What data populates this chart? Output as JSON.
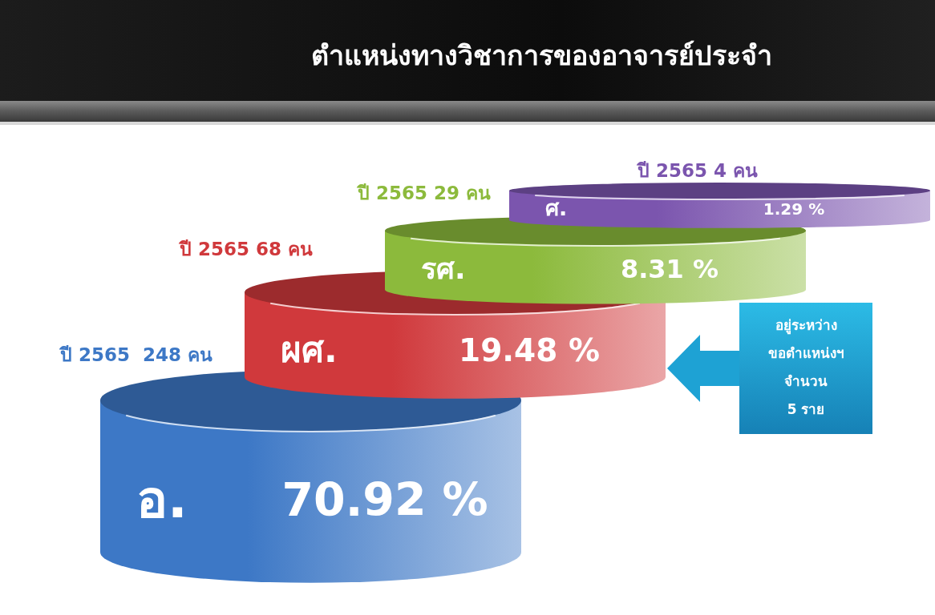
{
  "chart_data": {
    "type": "other",
    "title": "ตำแหน่งทางวิชาการของอาจารย์ประจำ",
    "categories": [
      "อ.",
      "ผศ.",
      "รศ.",
      "ศ."
    ],
    "values": [
      70.92,
      19.48,
      8.31,
      1.29
    ],
    "value_labels": [
      "70.92 %",
      "19.48 %",
      "8.31 %",
      "1.29 %"
    ],
    "colors": [
      "#3d78c6",
      "#d0393c",
      "#8cba3c",
      "#7b55ae"
    ],
    "annotations": [
      {
        "text": "ปี 2565  248 คน",
        "x": "อ."
      },
      {
        "text": "ปี 2565 68 คน",
        "x": "ผศ."
      },
      {
        "text": "ปี 2565 29 คน",
        "x": "รศ."
      },
      {
        "text": "ปี 2565 4 คน",
        "x": "ศ."
      },
      "อยู่ระหว่าง\nขอตำแหน่งฯ\nจำนวน\n5 ราย"
    ]
  }
}
